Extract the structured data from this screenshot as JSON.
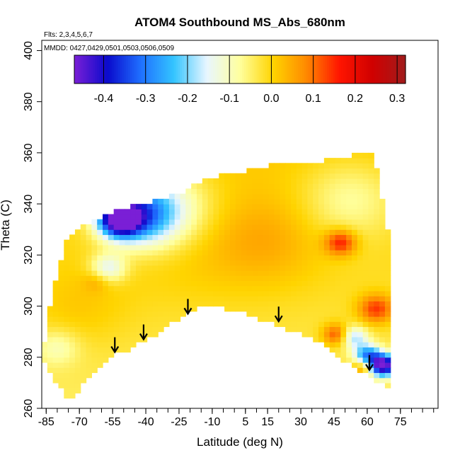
{
  "chart_data": {
    "type": "heatmap",
    "title": "ATOM4 Southbound MS_Abs_680nm",
    "xlabel": "Latitude (deg N)",
    "ylabel": "Theta (C)",
    "flights_note": "Flts: 2,3,4,5,6,7",
    "dates_note": "MMDD: 0427,0429,0501,0503,0506,0509",
    "xlim": [
      -87,
      92
    ],
    "ylim": [
      260,
      404
    ],
    "x_ticks": [
      "-85",
      "-70",
      "-55",
      "-40",
      "-25",
      "-10",
      "5",
      "15",
      "30",
      "45",
      "60",
      "75"
    ],
    "y_ticks": [
      "260",
      "280",
      "300",
      "320",
      "340",
      "360",
      "380",
      "400"
    ],
    "colorbar": {
      "min": -0.47,
      "max": 0.32,
      "ticks": [
        "-0.4",
        "-0.3",
        "-0.2",
        "-0.1",
        "0.0",
        "0.1",
        "0.2",
        "0.3"
      ],
      "colors": [
        "#7a1fd6",
        "#0a0acc",
        "#1f6fff",
        "#33c4ff",
        "#e8f6ff",
        "#ffff9e",
        "#ffd400",
        "#ff8a00",
        "#ff1500",
        "#d00000",
        "#a01c1c"
      ]
    },
    "boundary": [
      [
        -86,
        279
      ],
      [
        -86,
        285
      ],
      [
        -84,
        297
      ],
      [
        -80,
        313
      ],
      [
        -76,
        325
      ],
      [
        -72,
        330
      ],
      [
        -62,
        334
      ],
      [
        -52,
        338
      ],
      [
        -40,
        340
      ],
      [
        -25,
        344
      ],
      [
        -12,
        350
      ],
      [
        0,
        352
      ],
      [
        20,
        356
      ],
      [
        40,
        357
      ],
      [
        58,
        360
      ],
      [
        63,
        360
      ],
      [
        71,
        322
      ],
      [
        71,
        268
      ],
      [
        64,
        271
      ],
      [
        50,
        278
      ],
      [
        38,
        286
      ],
      [
        27,
        290
      ],
      [
        15,
        294
      ],
      [
        5,
        297
      ],
      [
        -5,
        299
      ],
      [
        -12,
        301
      ],
      [
        -24,
        296
      ],
      [
        -35,
        289
      ],
      [
        -48,
        283
      ],
      [
        -56,
        280
      ],
      [
        -68,
        270
      ],
      [
        -72,
        265
      ],
      [
        -75,
        264
      ],
      [
        -80,
        269
      ]
    ],
    "anomalies": [
      {
        "lat": -52,
        "theta": 334,
        "value": -0.42,
        "spread": 9
      },
      {
        "lat": -44,
        "theta": 336,
        "value": -0.25,
        "spread": 16
      },
      {
        "lat": -32,
        "theta": 338,
        "value": -0.14,
        "spread": 22
      },
      {
        "lat": -57,
        "theta": 315,
        "value": -0.14,
        "spread": 8
      },
      {
        "lat": -70,
        "theta": 300,
        "value": 0.035,
        "spread": 22
      },
      {
        "lat": -20,
        "theta": 324,
        "value": 0.03,
        "spread": 30
      },
      {
        "lat": 15,
        "theta": 325,
        "value": 0.05,
        "spread": 25
      },
      {
        "lat": 48,
        "theta": 325,
        "value": 0.17,
        "spread": 7
      },
      {
        "lat": 64,
        "theta": 299,
        "value": 0.16,
        "spread": 8
      },
      {
        "lat": 46,
        "theta": 289,
        "value": 0.15,
        "spread": 6
      },
      {
        "lat": 54,
        "theta": 288,
        "value": -0.16,
        "spread": 6
      },
      {
        "lat": 67,
        "theta": 277,
        "value": -0.47,
        "spread": 6
      },
      {
        "lat": 60,
        "theta": 281,
        "value": -0.25,
        "spread": 6
      },
      {
        "lat": 58,
        "theta": 276,
        "value": 0.12,
        "spread": 5
      },
      {
        "lat": 52,
        "theta": 342,
        "value": -0.08,
        "spread": 22
      },
      {
        "lat": -80,
        "theta": 284,
        "value": -0.07,
        "spread": 10
      },
      {
        "lat": -62,
        "theta": 310,
        "value": 0.05,
        "spread": 6
      }
    ],
    "arrows": [
      {
        "lat": -54,
        "theta": 282
      },
      {
        "lat": -41,
        "theta": 287
      },
      {
        "lat": -21,
        "theta": 297
      },
      {
        "lat": 20,
        "theta": 294
      },
      {
        "lat": 61,
        "theta": 275
      }
    ]
  }
}
